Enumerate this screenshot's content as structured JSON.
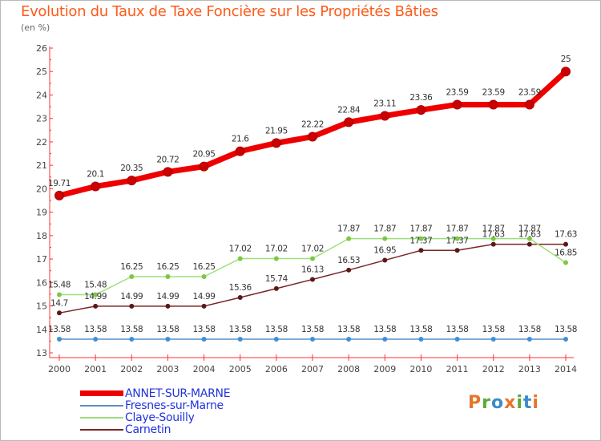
{
  "title": "Evolution du Taux de Taxe Foncière sur les Propriétés Bâties",
  "unit_label": "(en %)",
  "logo": {
    "letters": [
      "P",
      "r",
      "o",
      "x",
      "i",
      "t",
      "i"
    ],
    "colors": [
      "#e8742a",
      "#5aaa3c",
      "#3c8ccc",
      "#e8742a",
      "#5aaa3c",
      "#3c8ccc",
      "#e8742a"
    ]
  },
  "chart_data": {
    "type": "line",
    "title": "Evolution du Taux de Taxe Foncière sur les Propriétés Bâties",
    "ylabel": "(en %)",
    "xlabel": "",
    "ylim": [
      13,
      26
    ],
    "grid": false,
    "legend_position": "bottom-left",
    "x": [
      "2000",
      "2001",
      "2002",
      "2003",
      "2004",
      "2005",
      "2006",
      "2007",
      "2008",
      "2009",
      "2010",
      "2011",
      "2012",
      "2013",
      "2014"
    ],
    "y_ticks": [
      "13",
      "14",
      "15",
      "16",
      "17",
      "18",
      "19",
      "20",
      "21",
      "22",
      "23",
      "24",
      "25",
      "26"
    ],
    "series": [
      {
        "name": "ANNET-SUR-MARNE",
        "color": "#ee0000",
        "marker_color": "#cc0000",
        "values": [
          19.71,
          20.1,
          20.35,
          20.72,
          20.95,
          21.6,
          21.95,
          22.22,
          22.84,
          23.11,
          23.36,
          23.59,
          23.59,
          23.59,
          25
        ],
        "labels": [
          "19.71",
          "20.1",
          "20.35",
          "20.72",
          "20.95",
          "21.6",
          "21.95",
          "22.22",
          "22.84",
          "23.11",
          "23.36",
          "23.59",
          "23.59",
          "23.59",
          "25"
        ]
      },
      {
        "name": "Fresnes-sur-Marne",
        "color": "#5b8dc8",
        "marker_color": "#3f8fd8",
        "values": [
          13.58,
          13.58,
          13.58,
          13.58,
          13.58,
          13.58,
          13.58,
          13.58,
          13.58,
          13.58,
          13.58,
          13.58,
          13.58,
          13.58,
          13.58
        ],
        "labels": [
          "13.58",
          "13.58",
          "13.58",
          "13.58",
          "13.58",
          "13.58",
          "13.58",
          "13.58",
          "13.58",
          "13.58",
          "13.58",
          "13.58",
          "13.58",
          "13.58",
          "13.58"
        ]
      },
      {
        "name": "Claye-Souilly",
        "color": "#9be07a",
        "marker_color": "#7cc843",
        "values": [
          15.48,
          15.48,
          16.25,
          16.25,
          16.25,
          17.02,
          17.02,
          17.02,
          17.87,
          17.87,
          17.87,
          17.87,
          17.87,
          17.87,
          16.85
        ],
        "labels": [
          "15.48",
          "15.48",
          "16.25",
          "16.25",
          "16.25",
          "17.02",
          "17.02",
          "17.02",
          "17.87",
          "17.87",
          "17.87",
          "17.87",
          "17.87",
          "17.87",
          "16.85"
        ]
      },
      {
        "name": "Carnetin",
        "color": "#7a2626",
        "marker_color": "#5a1818",
        "values": [
          14.7,
          14.99,
          14.99,
          14.99,
          14.99,
          15.36,
          15.74,
          16.13,
          16.53,
          16.95,
          17.37,
          17.37,
          17.63,
          17.63,
          17.63
        ],
        "labels": [
          "14.7",
          "14.99",
          "14.99",
          "14.99",
          "14.99",
          "15.36",
          "15.74",
          "16.13",
          "16.53",
          "16.95",
          "17.37",
          "17.37",
          "17.63",
          "17.63",
          "17.63"
        ]
      }
    ]
  }
}
